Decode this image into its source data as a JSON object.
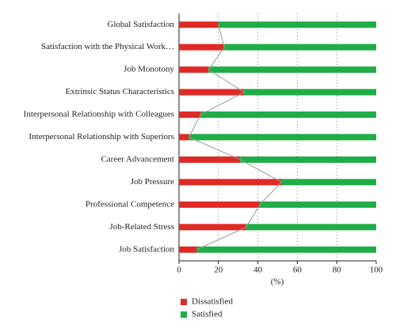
{
  "chart_data": {
    "type": "bar",
    "orientation": "horizontal",
    "stacked": true,
    "categories": [
      "Global Satisfaction",
      "Satisfaction with the Physical Work…",
      "Job Monotony",
      "Extrinsic Status Characteristics",
      "Interpersonal Relationship with Colleagues",
      "Interpersonal Relationship with Superiors",
      "Career Advancement",
      "Job Pressure",
      "Professional Competence",
      "Job-Related Stress",
      "Job Satisfaction"
    ],
    "series": [
      {
        "name": "Dissatisfied",
        "color": "#e02a26",
        "values": [
          20,
          23,
          15,
          33,
          11,
          5,
          31,
          52,
          41,
          34,
          9
        ]
      },
      {
        "name": "Satisfied",
        "color": "#1fad47",
        "values": [
          80,
          77,
          85,
          67,
          89,
          95,
          69,
          48,
          59,
          66,
          91
        ]
      }
    ],
    "x_label": "(%)",
    "xlim": [
      0,
      100
    ],
    "xticks": [
      0,
      20,
      40,
      60,
      80,
      100
    ],
    "grid": true,
    "legend": "bottom"
  }
}
